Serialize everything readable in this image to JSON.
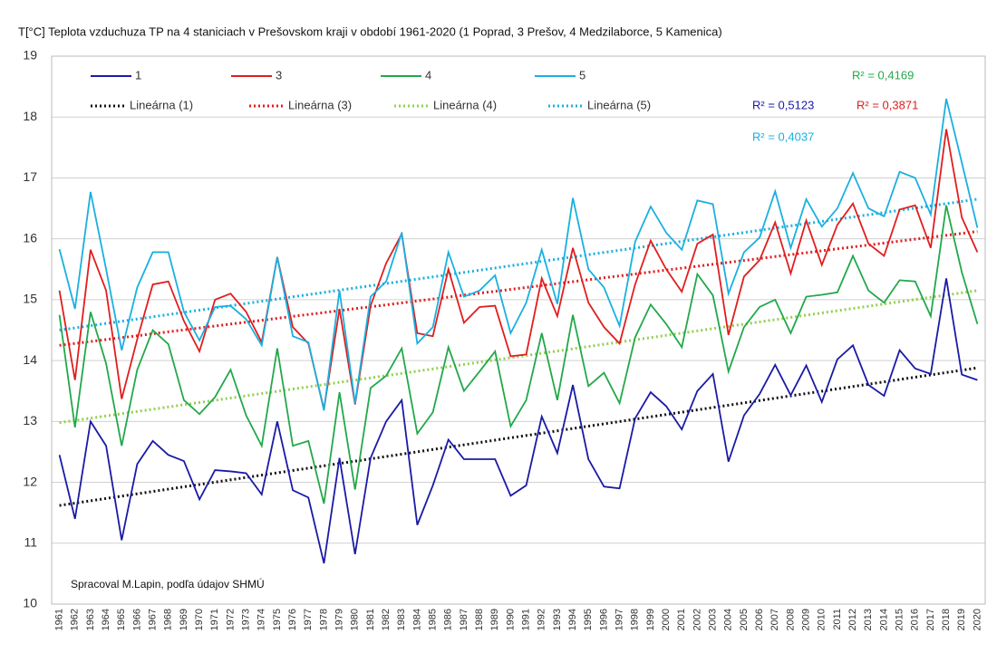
{
  "chart_data": {
    "type": "line",
    "title": "T[°C]  Teplota vzduchuza  TP na 4 staniciach v Prešovskom kraji v období 1961-2020 (1 Poprad, 3 Prešov, 4 Medzilaborce, 5 Kamenica)",
    "note": "Spracoval M.Lapin, podľa údajov SHMÚ",
    "categories": [
      "1961",
      "1962",
      "1963",
      "1964",
      "1965",
      "1966",
      "1967",
      "1968",
      "1969",
      "1970",
      "1971",
      "1972",
      "1973",
      "1974",
      "1975",
      "1976",
      "1977",
      "1978",
      "1979",
      "1980",
      "1981",
      "1982",
      "1983",
      "1984",
      "1985",
      "1986",
      "1987",
      "1988",
      "1989",
      "1990",
      "1991",
      "1992",
      "1993",
      "1994",
      "1995",
      "1996",
      "1997",
      "1998",
      "1999",
      "2000",
      "2001",
      "2002",
      "2003",
      "2004",
      "2005",
      "2006",
      "2007",
      "2008",
      "2009",
      "2010",
      "2011",
      "2012",
      "2013",
      "2014",
      "2015",
      "2016",
      "2017",
      "2018",
      "2019",
      "2020"
    ],
    "ylim": [
      10,
      19
    ],
    "yticks": [
      10,
      11,
      12,
      13,
      14,
      15,
      16,
      17,
      18,
      19
    ],
    "grid": true,
    "series": [
      {
        "name": "1",
        "color": "#1a1aa6",
        "values": [
          12.45,
          11.4,
          13.0,
          12.6,
          11.05,
          12.3,
          12.68,
          12.45,
          12.35,
          11.72,
          12.2,
          12.18,
          12.15,
          11.8,
          13.0,
          11.87,
          11.75,
          10.67,
          12.4,
          10.82,
          12.4,
          13.0,
          13.35,
          11.3,
          11.95,
          12.7,
          12.38,
          12.38,
          12.38,
          11.78,
          11.95,
          13.08,
          12.48,
          13.6,
          12.38,
          11.93,
          11.9,
          13.05,
          13.48,
          13.25,
          12.87,
          13.5,
          13.78,
          12.34,
          13.1,
          13.45,
          13.93,
          13.43,
          13.92,
          13.32,
          14.02,
          14.25,
          13.6,
          13.42,
          14.17,
          13.87,
          13.78,
          15.35,
          13.77,
          13.68
        ]
      },
      {
        "name": "3",
        "color": "#e01e1e",
        "values": [
          15.15,
          13.68,
          15.82,
          15.15,
          13.37,
          14.35,
          15.25,
          15.3,
          14.65,
          14.15,
          15.0,
          15.1,
          14.8,
          14.3,
          15.7,
          14.55,
          14.28,
          13.2,
          14.85,
          13.28,
          14.9,
          15.6,
          16.08,
          14.45,
          14.4,
          15.5,
          14.62,
          14.88,
          14.9,
          14.07,
          14.1,
          15.35,
          14.73,
          15.85,
          14.95,
          14.55,
          14.28,
          15.25,
          15.97,
          15.5,
          15.13,
          15.92,
          16.07,
          14.42,
          15.38,
          15.65,
          16.27,
          15.43,
          16.3,
          15.57,
          16.23,
          16.58,
          15.92,
          15.72,
          16.48,
          16.55,
          15.85,
          17.8,
          16.35,
          15.78
        ]
      },
      {
        "name": "4",
        "color": "#22a84a",
        "values": [
          14.75,
          12.9,
          14.8,
          13.95,
          12.6,
          13.85,
          14.5,
          14.27,
          13.35,
          13.12,
          13.4,
          13.85,
          13.1,
          12.6,
          14.2,
          12.6,
          12.68,
          11.65,
          13.48,
          11.88,
          13.55,
          13.75,
          14.2,
          12.8,
          13.15,
          14.22,
          13.5,
          13.82,
          14.15,
          12.92,
          13.35,
          14.45,
          13.35,
          14.75,
          13.58,
          13.8,
          13.3,
          14.38,
          14.92,
          14.6,
          14.22,
          15.42,
          15.07,
          13.82,
          14.55,
          14.88,
          15.0,
          14.45,
          15.05,
          15.08,
          15.12,
          15.72,
          15.15,
          14.95,
          15.32,
          15.3,
          14.73,
          16.55,
          15.45,
          14.6
        ]
      },
      {
        "name": "5",
        "color": "#1ab0e0",
        "values": [
          15.83,
          14.85,
          16.77,
          15.5,
          14.17,
          15.2,
          15.78,
          15.78,
          14.8,
          14.33,
          14.88,
          14.9,
          14.68,
          14.25,
          15.7,
          14.4,
          14.3,
          13.18,
          15.15,
          13.3,
          15.05,
          15.3,
          16.1,
          14.28,
          14.55,
          15.78,
          15.05,
          15.15,
          15.4,
          14.45,
          14.95,
          15.82,
          14.93,
          16.67,
          15.5,
          15.2,
          14.57,
          15.95,
          16.53,
          16.1,
          15.82,
          16.63,
          16.57,
          15.1,
          15.78,
          16.02,
          16.78,
          15.85,
          16.65,
          16.2,
          16.5,
          17.08,
          16.5,
          16.37,
          17.1,
          17.0,
          16.4,
          18.3,
          17.25,
          16.18
        ]
      }
    ],
    "trendlines": [
      {
        "name": "Lineárna (1)",
        "color": "#111111",
        "x": [
          "1961",
          "2020"
        ],
        "values": [
          11.62,
          13.88
        ]
      },
      {
        "name": "Lineárna (3)",
        "color": "#e01e1e",
        "x": [
          "1961",
          "2020"
        ],
        "values": [
          14.25,
          16.12
        ]
      },
      {
        "name": "Lineárna (4)",
        "color": "#92d050",
        "x": [
          "1961",
          "2020"
        ],
        "values": [
          12.98,
          15.15
        ]
      },
      {
        "name": "Lineárna (5)",
        "color": "#1ab0e0",
        "x": [
          "1961",
          "2020"
        ],
        "values": [
          14.5,
          16.65
        ]
      }
    ],
    "annotations": [
      {
        "text": "R² = 0,4169",
        "color": "#22a84a"
      },
      {
        "text": "R² = 0,5123",
        "color": "#1a1aa6"
      },
      {
        "text": "R² = 0,3871",
        "color": "#e01e1e"
      },
      {
        "text": "R² = 0,4037",
        "color": "#1ab0e0"
      }
    ]
  }
}
